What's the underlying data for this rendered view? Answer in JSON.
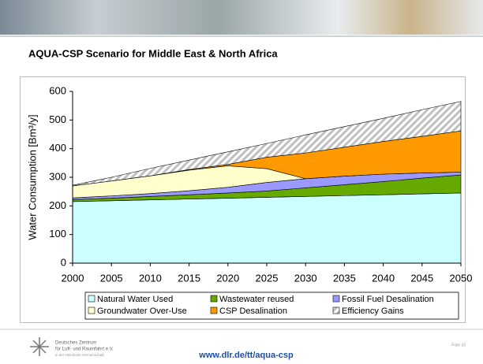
{
  "chart_data": {
    "type": "stacked-area",
    "title": "AQUA-CSP Scenario for Middle East & North Africa",
    "y_label": "Water Consumption [Bm³/y]",
    "x": [
      2000,
      2005,
      2010,
      2015,
      2020,
      2025,
      2030,
      2035,
      2040,
      2045,
      2050
    ],
    "xlim": [
      2000,
      2050
    ],
    "xticks": [
      2000,
      2005,
      2010,
      2015,
      2020,
      2025,
      2030,
      2035,
      2040,
      2045,
      2050
    ],
    "ylim": [
      0,
      600
    ],
    "yticks": [
      0,
      100,
      200,
      300,
      400,
      500,
      600
    ],
    "series": [
      {
        "name": "Natural Water Used",
        "color": "#ccffff",
        "values": [
          215,
          218,
          221,
          224,
          227,
          230,
          233,
          236,
          239,
          242,
          245
        ]
      },
      {
        "name": "Wastewater reused",
        "color": "#66aa00",
        "values": [
          7,
          9,
          12,
          15,
          18,
          22,
          30,
          38,
          46,
          55,
          63
        ]
      },
      {
        "name": "Fossil Fuel Desalination",
        "color": "#9999ff",
        "values": [
          6,
          8,
          10,
          14,
          20,
          30,
          32,
          30,
          26,
          18,
          10
        ]
      },
      {
        "name": "Groundwater Over-Use",
        "color": "#ffffcc",
        "values": [
          42,
          52,
          62,
          72,
          75,
          48,
          0,
          0,
          0,
          0,
          0
        ]
      },
      {
        "name": "CSP Desalination",
        "color": "#ff9900",
        "values": [
          0,
          0,
          0,
          2,
          5,
          40,
          90,
          101,
          114,
          128,
          144
        ]
      },
      {
        "name": "Efficiency Gains",
        "color": "#c0c0c0",
        "hatched": true,
        "values": [
          2,
          13,
          26,
          33,
          44,
          48,
          63,
          72,
          81,
          93,
          103
        ]
      }
    ],
    "legend_columns": 3
  },
  "footer": {
    "org_line1": "Deutsches Zentrum",
    "org_line2": "für Luft- und Raumfahrt e.V.",
    "org_line3": "in der Helmholtz-Gemeinschaft",
    "url": "www.dlr.de/tt/aqua-csp",
    "page": "Folie 33"
  }
}
